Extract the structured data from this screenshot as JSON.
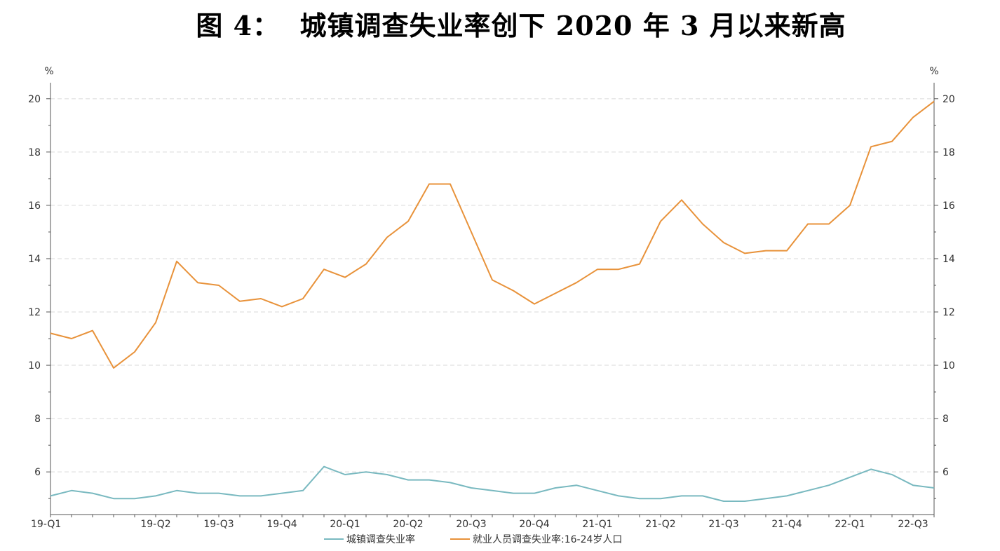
{
  "chart_data": {
    "type": "line",
    "title": "图 4：  城镇调查失业率创下 2020 年 3 月以来新高",
    "left_unit": "%",
    "right_unit": "%",
    "ylim": [
      4.4,
      20.6
    ],
    "yticks": [
      6,
      8,
      10,
      12,
      14,
      16,
      18,
      20
    ],
    "grid": true,
    "legend_position": "bottom",
    "x_tick_labels": [
      {
        "index": 0,
        "label": "19-Q1"
      },
      {
        "index": 5,
        "label": "19-Q2"
      },
      {
        "index": 8,
        "label": "19-Q3"
      },
      {
        "index": 11,
        "label": "19-Q4"
      },
      {
        "index": 14,
        "label": "20-Q1"
      },
      {
        "index": 17,
        "label": "20-Q2"
      },
      {
        "index": 20,
        "label": "20-Q3"
      },
      {
        "index": 23,
        "label": "20-Q4"
      },
      {
        "index": 26,
        "label": "21-Q1"
      },
      {
        "index": 29,
        "label": "21-Q2"
      },
      {
        "index": 32,
        "label": "21-Q3"
      },
      {
        "index": 35,
        "label": "21-Q4"
      },
      {
        "index": 38,
        "label": "22-Q1"
      },
      {
        "index": 41,
        "label": "22-Q3"
      }
    ],
    "series": [
      {
        "name": "城镇调查失业率",
        "color": "#79b9c0",
        "values": [
          5.1,
          5.3,
          5.2,
          5.0,
          5.0,
          5.1,
          5.3,
          5.2,
          5.2,
          5.1,
          5.1,
          5.2,
          5.3,
          6.2,
          5.9,
          6.0,
          5.9,
          5.7,
          5.7,
          5.6,
          5.4,
          5.3,
          5.2,
          5.2,
          5.4,
          5.5,
          5.3,
          5.1,
          5.0,
          5.0,
          5.1,
          5.1,
          4.9,
          4.9,
          5.0,
          5.1,
          5.3,
          5.5,
          5.8,
          6.1,
          5.9,
          5.5,
          5.4
        ]
      },
      {
        "name": "就业人员调查失业率:16-24岁人口",
        "color": "#e8923a",
        "values": [
          11.2,
          11.0,
          11.3,
          9.9,
          10.5,
          11.6,
          13.9,
          13.1,
          13.0,
          12.4,
          12.5,
          12.2,
          12.5,
          13.6,
          13.3,
          13.8,
          14.8,
          15.4,
          16.8,
          16.8,
          15.0,
          13.2,
          12.8,
          12.3,
          12.7,
          13.1,
          13.6,
          13.6,
          13.8,
          15.4,
          16.2,
          15.3,
          14.6,
          14.2,
          14.3,
          14.3,
          15.3,
          15.3,
          16.0,
          18.2,
          18.4,
          19.3,
          19.9
        ]
      }
    ]
  }
}
